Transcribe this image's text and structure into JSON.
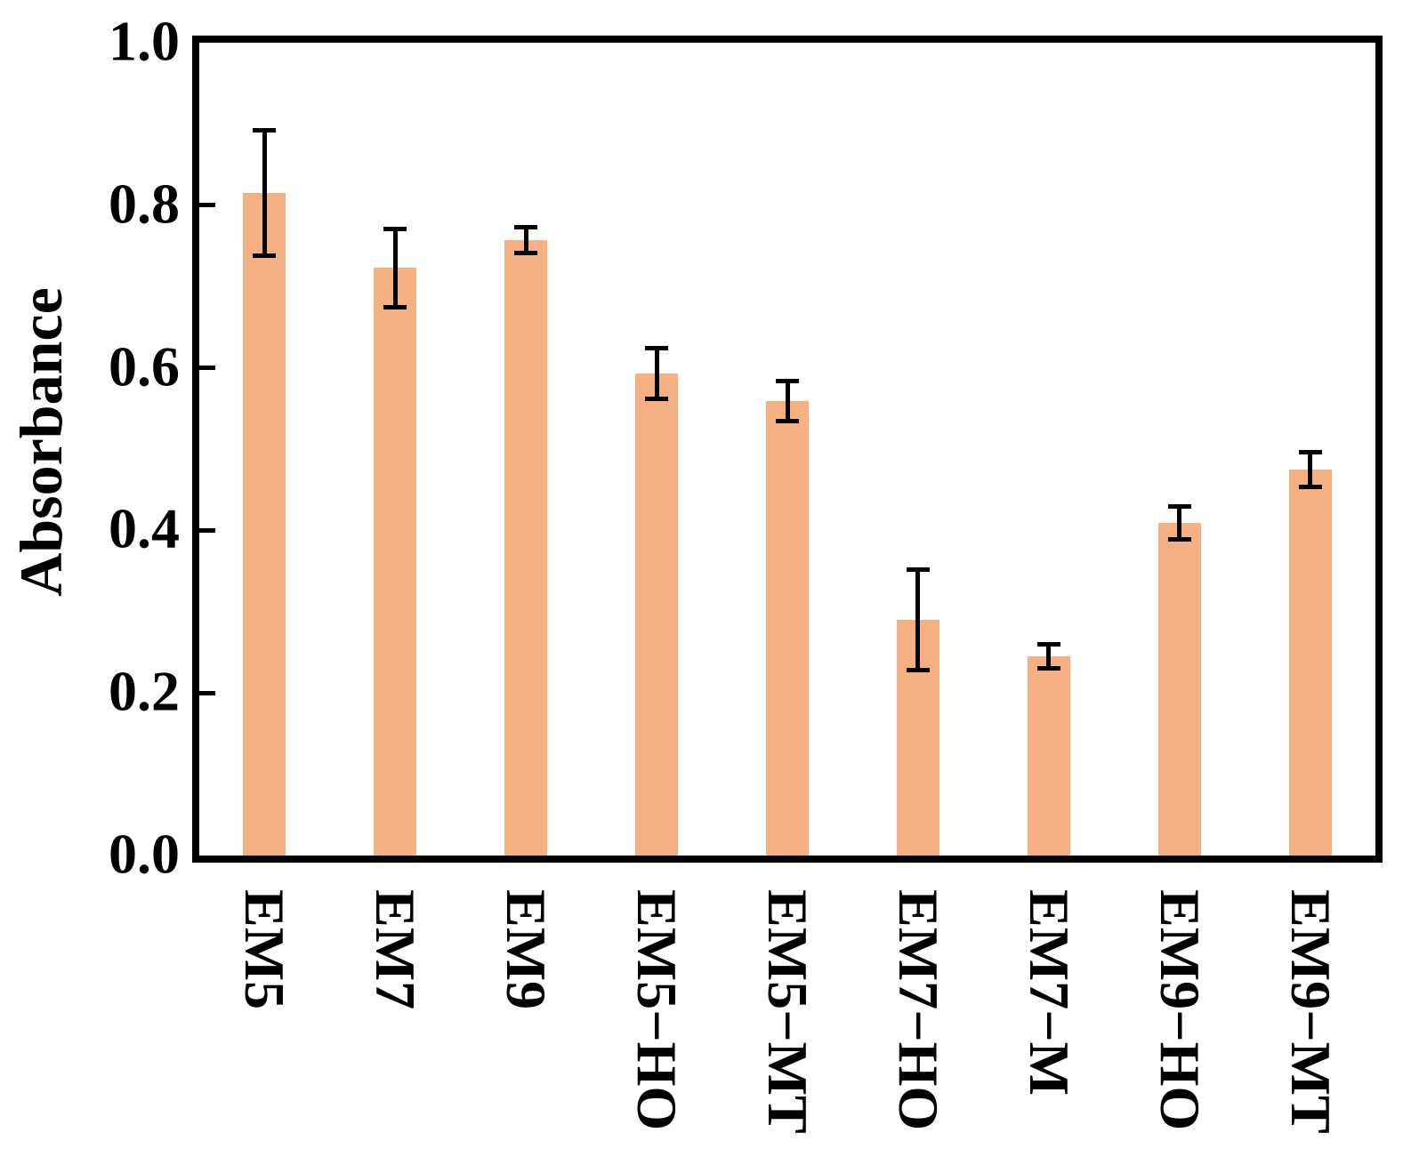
{
  "figure": {
    "background": "#ffffff",
    "axis_color": "#000000",
    "text_color": "#000000"
  },
  "chart_data": {
    "type": "bar",
    "title": "",
    "xlabel": "",
    "ylabel": "Absorbance",
    "categories": [
      "EM5",
      "EM7",
      "EM9",
      "EM5−HO",
      "EM5−MT",
      "EM7−HO",
      "EM7−M",
      "EM9−HO",
      "EM9−MT"
    ],
    "values": [
      0.815,
      0.723,
      0.757,
      0.593,
      0.559,
      0.29,
      0.245,
      0.409,
      0.475
    ],
    "errors": [
      0.077,
      0.048,
      0.016,
      0.031,
      0.025,
      0.062,
      0.015,
      0.02,
      0.021
    ],
    "ylim": [
      0.0,
      1.0
    ],
    "yticks": [
      "0.0",
      "0.2",
      "0.4",
      "0.6",
      "0.8",
      "1.0"
    ],
    "grid": false,
    "legend": null,
    "bar_color": "#F4B083",
    "error_bar_color": "#000000"
  }
}
